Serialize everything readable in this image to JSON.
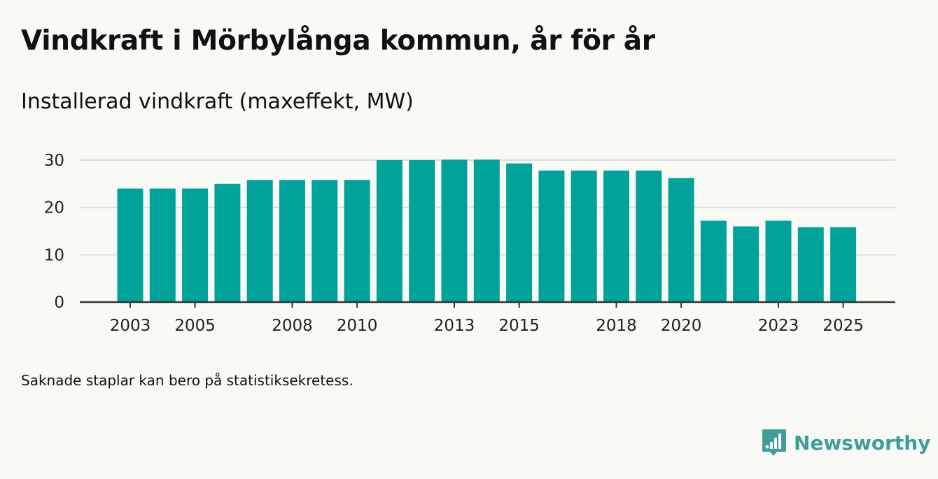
{
  "header": {
    "title": "Vindkraft i Mörbylånga kommun, år för år",
    "subtitle": "Installerad vindkraft (maxeffekt, MW)"
  },
  "footer": {
    "note": "Saknade staplar kan bero på statistiksekretess.",
    "brand": "Newsworthy"
  },
  "colors": {
    "bar": "#00a39a",
    "grid": "#dddddd",
    "axis": "#333333",
    "brand": "#3f9e99"
  },
  "chart_data": {
    "type": "bar",
    "title": "Vindkraft i Mörbylånga kommun, år för år",
    "ylabel": "Installerad vindkraft (maxeffekt, MW)",
    "xlabel": "",
    "categories": [
      "2003",
      "2004",
      "2005",
      "2006",
      "2007",
      "2008",
      "2009",
      "2010",
      "2011",
      "2012",
      "2013",
      "2014",
      "2015",
      "2016",
      "2017",
      "2018",
      "2019",
      "2020",
      "2021",
      "2022",
      "2023",
      "2024",
      "2025"
    ],
    "values": [
      24,
      24,
      24,
      25,
      25.8,
      25.8,
      25.8,
      25.8,
      30,
      30,
      30.1,
      30.1,
      29.3,
      27.8,
      27.8,
      27.8,
      27.8,
      26.2,
      17.2,
      16,
      17.2,
      15.8,
      15.8
    ],
    "x_tick_labels": [
      "2003",
      "2005",
      "2008",
      "2010",
      "2013",
      "2015",
      "2018",
      "2020",
      "2023",
      "2025"
    ],
    "y_ticks": [
      0,
      10,
      20,
      30
    ],
    "ylim": [
      0,
      30.1
    ],
    "grid": true,
    "legend": "none"
  }
}
